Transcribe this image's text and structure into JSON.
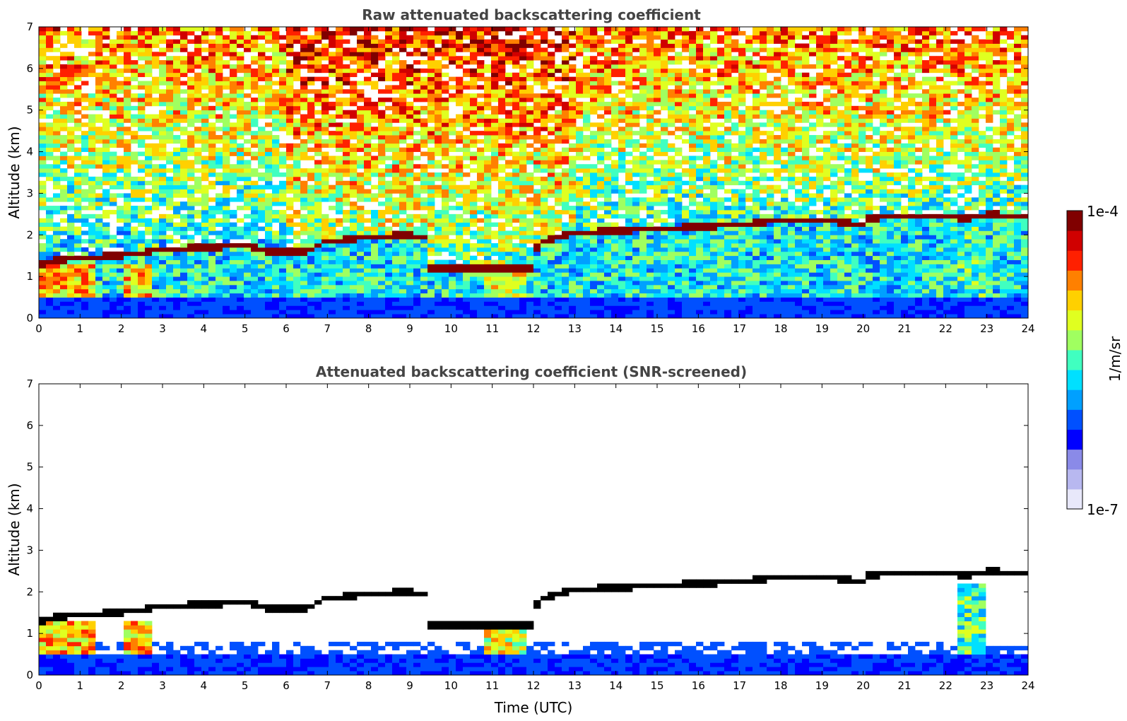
{
  "chart_data": [
    {
      "type": "heatmap",
      "title": "Raw attenuated backscattering coefficient",
      "xlabel": "",
      "ylabel": "Altitude (km)",
      "xlim": [
        0,
        24
      ],
      "ylim": [
        0,
        7
      ],
      "xticks": [
        "0",
        "1",
        "2",
        "3",
        "4",
        "5",
        "6",
        "7",
        "8",
        "9",
        "10",
        "11",
        "12",
        "13",
        "14",
        "15",
        "16",
        "17",
        "18",
        "19",
        "20",
        "21",
        "22",
        "23",
        "24"
      ],
      "yticks": [
        "0",
        "1",
        "2",
        "3",
        "4",
        "5",
        "6",
        "7"
      ],
      "screened": false,
      "layer_top_km": [
        [
          0.0,
          1.3
        ],
        [
          0.5,
          1.4
        ],
        [
          1.0,
          1.45
        ],
        [
          2.0,
          1.5
        ],
        [
          3.0,
          1.65
        ],
        [
          4.0,
          1.7
        ],
        [
          5.0,
          1.75
        ],
        [
          5.5,
          1.6
        ],
        [
          6.5,
          1.6
        ],
        [
          7.0,
          1.85
        ],
        [
          8.0,
          1.95
        ],
        [
          9.0,
          2.0
        ],
        [
          9.4,
          1.95
        ],
        [
          9.5,
          1.2
        ],
        [
          10.5,
          1.2
        ],
        [
          11.0,
          1.2
        ],
        [
          12.0,
          1.2
        ],
        [
          12.1,
          1.8
        ],
        [
          13.0,
          2.05
        ],
        [
          14.0,
          2.1
        ],
        [
          15.0,
          2.15
        ],
        [
          16.0,
          2.2
        ],
        [
          17.0,
          2.25
        ],
        [
          18.0,
          2.35
        ],
        [
          19.0,
          2.35
        ],
        [
          20.0,
          2.25
        ],
        [
          20.1,
          2.4
        ],
        [
          21.0,
          2.45
        ],
        [
          22.0,
          2.45
        ],
        [
          22.5,
          2.4
        ],
        [
          23.0,
          2.5
        ],
        [
          24.0,
          2.45
        ]
      ]
    },
    {
      "type": "heatmap",
      "title": "Attenuated backscattering coefficient (SNR-screened)",
      "xlabel": "Time (UTC)",
      "ylabel": "Altitude (km)",
      "xlim": [
        0,
        24
      ],
      "ylim": [
        0,
        7
      ],
      "xticks": [
        "0",
        "1",
        "2",
        "3",
        "4",
        "5",
        "6",
        "7",
        "8",
        "9",
        "10",
        "11",
        "12",
        "13",
        "14",
        "15",
        "16",
        "17",
        "18",
        "19",
        "20",
        "21",
        "22",
        "23",
        "24"
      ],
      "yticks": [
        "0",
        "1",
        "2",
        "3",
        "4",
        "5",
        "6",
        "7"
      ],
      "screened": true
    }
  ],
  "colorbar": {
    "label": "1/m/sr",
    "max_label": "1e-4",
    "min_label": "1e-7",
    "colors": [
      "#e8e8fa",
      "#b8b8f0",
      "#8a8ae8",
      "#0000ff",
      "#0050ff",
      "#00a0ff",
      "#00e0ff",
      "#40ffc0",
      "#a0ff60",
      "#e0ff20",
      "#ffd000",
      "#ff8000",
      "#ff2000",
      "#d00000",
      "#800000"
    ]
  }
}
